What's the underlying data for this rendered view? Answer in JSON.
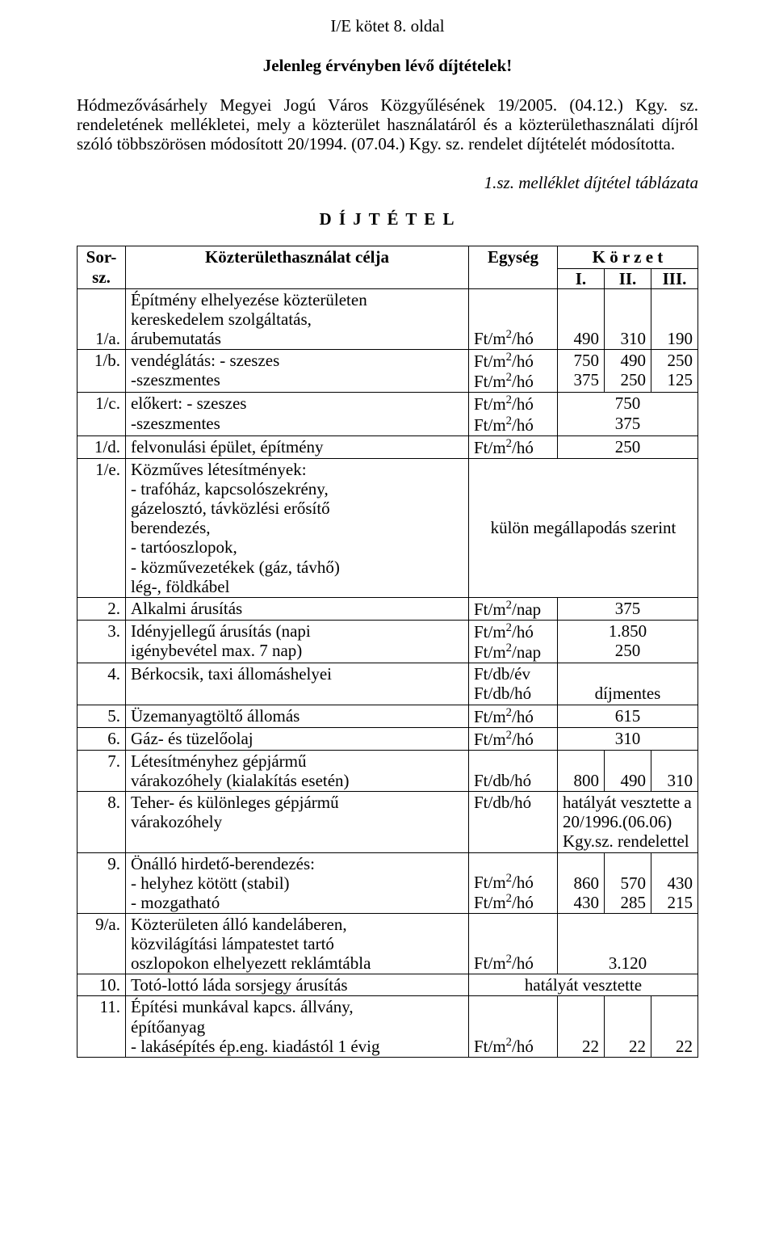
{
  "header": "I/E kötet 8. oldal",
  "title": "Jelenleg érvényben lévő díjtételek!",
  "intro": "Hódmezővásárhely Megyei Jogú Város Közgyűlésének 19/2005. (04.12.) Kgy. sz. rendeletének mellékletei, mely a közterület használatáról és a közterülethasználati díjról szóló többszörösen módosított 20/1994. (07.04.) Kgy. sz. rendelet díjtételét módosította.",
  "annex": "1.sz. melléklet díjtétel táblázata",
  "section_title": "D Í J T É T E L",
  "table": {
    "head": {
      "sor": "Sor-sz.",
      "purpose": "Közterülethasználat célja",
      "unit": "Egység",
      "zone": "K ö r z e t",
      "z1": "I.",
      "z2": "II.",
      "z3": "III."
    },
    "unit_ftm2ho": "Ft/m²/hó",
    "unit_ftm2nap": "Ft/m²/nap",
    "unit_ftdbev": "Ft/db/év",
    "unit_ftdbho": "Ft/db/hó",
    "rows": {
      "r1a": {
        "n": "1/a.",
        "t1": "Építmény elhelyezése közterületen",
        "t2": "kereskedelem szolgáltatás,",
        "t3": "árubemutatás",
        "v1": "490",
        "v2": "310",
        "v3": "190"
      },
      "r1b": {
        "n": "1/b.",
        "t1": "vendéglátás: - szeszes",
        "t2": "-szeszmentes",
        "a1": "750",
        "a2": "490",
        "a3": "250",
        "b1": "375",
        "b2": "250",
        "b3": "125"
      },
      "r1c": {
        "n": "1/c.",
        "t1": "előkert: -  szeszes",
        "t2": "-szeszmentes",
        "a": "750",
        "b": "375"
      },
      "r1d": {
        "n": "1/d.",
        "t": "felvonulási épület, építmény",
        "v": "250"
      },
      "r1e": {
        "n": "1/e.",
        "t1": "Közműves létesítmények:",
        "t2": "- trafóház, kapcsolószekrény,",
        "t3": "gázelosztó, távközlési erősítő",
        "t4": "berendezés,",
        "t5": "- tartóoszlopok,",
        "t6": "- közművezetékek (gáz, távhő)",
        "t7": "lég-, földkábel",
        "note": "külön megállapodás szerint"
      },
      "r2": {
        "n": "2.",
        "t": "Alkalmi árusítás",
        "v": "375"
      },
      "r3": {
        "n": "3.",
        "t1": "Idényjellegű árusítás (napi",
        "t2": "igénybevétel max. 7 nap)",
        "a": "1.850",
        "b": "250"
      },
      "r4": {
        "n": "4.",
        "t": "Bérkocsik, taxi állomáshelyei",
        "note": "díjmentes"
      },
      "r5": {
        "n": "5.",
        "t": "Üzemanyagtöltő állomás",
        "v": "615"
      },
      "r6": {
        "n": "6.",
        "t": "Gáz- és tüzelőolaj",
        "v": "310"
      },
      "r7": {
        "n": "7.",
        "t1": "Létesítményhez gépjármű",
        "t2": "várakozóhely (kialakítás esetén)",
        "v1": "800",
        "v2": "490",
        "v3": "310"
      },
      "r8": {
        "n": "8.",
        "t1": "Teher- és különleges gépjármű",
        "t2": "várakozóhely",
        "note1": "hatályát vesztette a",
        "note2": "20/1996.(06.06)",
        "note3": "Kgy.sz. rendelettel"
      },
      "r9": {
        "n": "9.",
        "t1": "Önálló hirdető-berendezés:",
        "t2": "- helyhez kötött (stabil)",
        "t3": "- mozgatható",
        "a1": "860",
        "a2": "570",
        "a3": "430",
        "b1": "430",
        "b2": "285",
        "b3": "215"
      },
      "r9a": {
        "n": "9/a.",
        "t1": "Közterületen álló kandeláberen,",
        "t2": "közvilágítási lámpatestet tartó",
        "t3": "oszlopokon elhelyezett reklámtábla",
        "v": "3.120"
      },
      "r10": {
        "n": "10.",
        "t": "Totó-lottó láda sorsjegy árusítás",
        "note": "hatályát vesztette"
      },
      "r11": {
        "n": "11.",
        "t1": "Építési munkával kapcs. állvány,",
        "t2": "építőanyag",
        "t3": "- lakásépítés ép.eng. kiadástól  1 évig",
        "v1": "22",
        "v2": "22",
        "v3": "22"
      }
    }
  }
}
